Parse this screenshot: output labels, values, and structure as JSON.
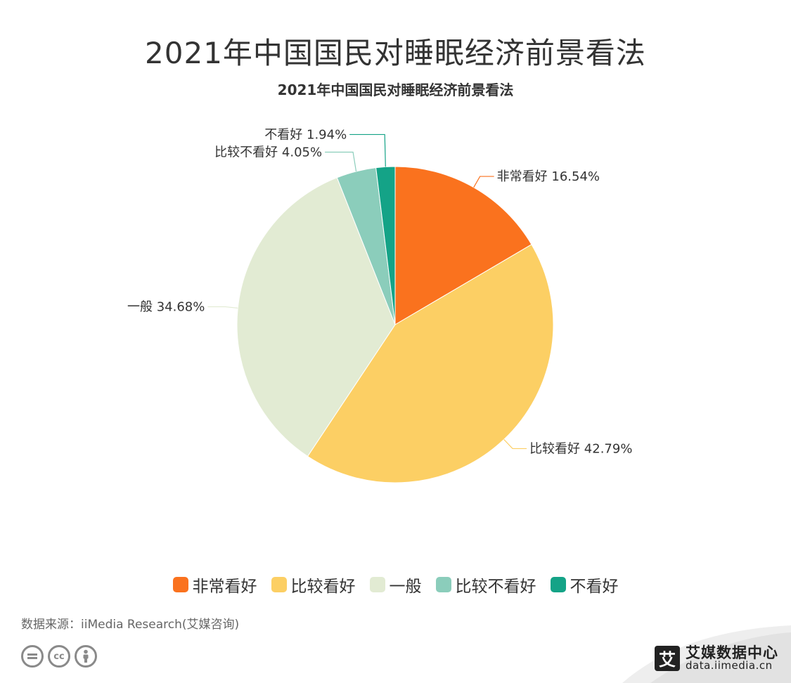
{
  "header": {
    "title": "2021年中国国民对睡眠经济前景看法",
    "subtitle": "2021年中国国民对睡眠经济前景看法"
  },
  "chart_data": {
    "type": "pie",
    "title": "2021年中国国民对睡眠经济前景看法",
    "subtitle": "2021年中国国民对睡眠经济前景看法",
    "slices": [
      {
        "name": "非常看好",
        "value": 16.54,
        "label": "非常看好 16.54%",
        "color": "#FA721E"
      },
      {
        "name": "比较看好",
        "value": 42.79,
        "label": "比较看好 42.79%",
        "color": "#FCCF64"
      },
      {
        "name": "一般",
        "value": 34.68,
        "label": "一般 34.68%",
        "color": "#E2EBD3"
      },
      {
        "name": "比较不看好",
        "value": 4.05,
        "label": "比较不看好 4.05%",
        "color": "#8BCDBB"
      },
      {
        "name": "不看好",
        "value": 1.94,
        "label": "不看好 1.94%",
        "color": "#14A387"
      }
    ],
    "legend_position": "bottom",
    "start_angle": "12 o'clock",
    "direction": "clockwise"
  },
  "legend": {
    "items": [
      {
        "label": "非常看好",
        "color": "#FA721E"
      },
      {
        "label": "比较看好",
        "color": "#FCCF64"
      },
      {
        "label": "一般",
        "color": "#E2EBD3"
      },
      {
        "label": "比较不看好",
        "color": "#8BCDBB"
      },
      {
        "label": "不看好",
        "color": "#14A387"
      }
    ]
  },
  "footer": {
    "source": "数据来源：iiMedia Research(艾媒咨询)",
    "license_icons": [
      "equals-icon",
      "cc-icon",
      "person-icon"
    ],
    "cc_text": "cc",
    "brand_mark": "艾",
    "brand_name": "艾媒数据中心",
    "brand_url": "data.iimedia.cn"
  }
}
